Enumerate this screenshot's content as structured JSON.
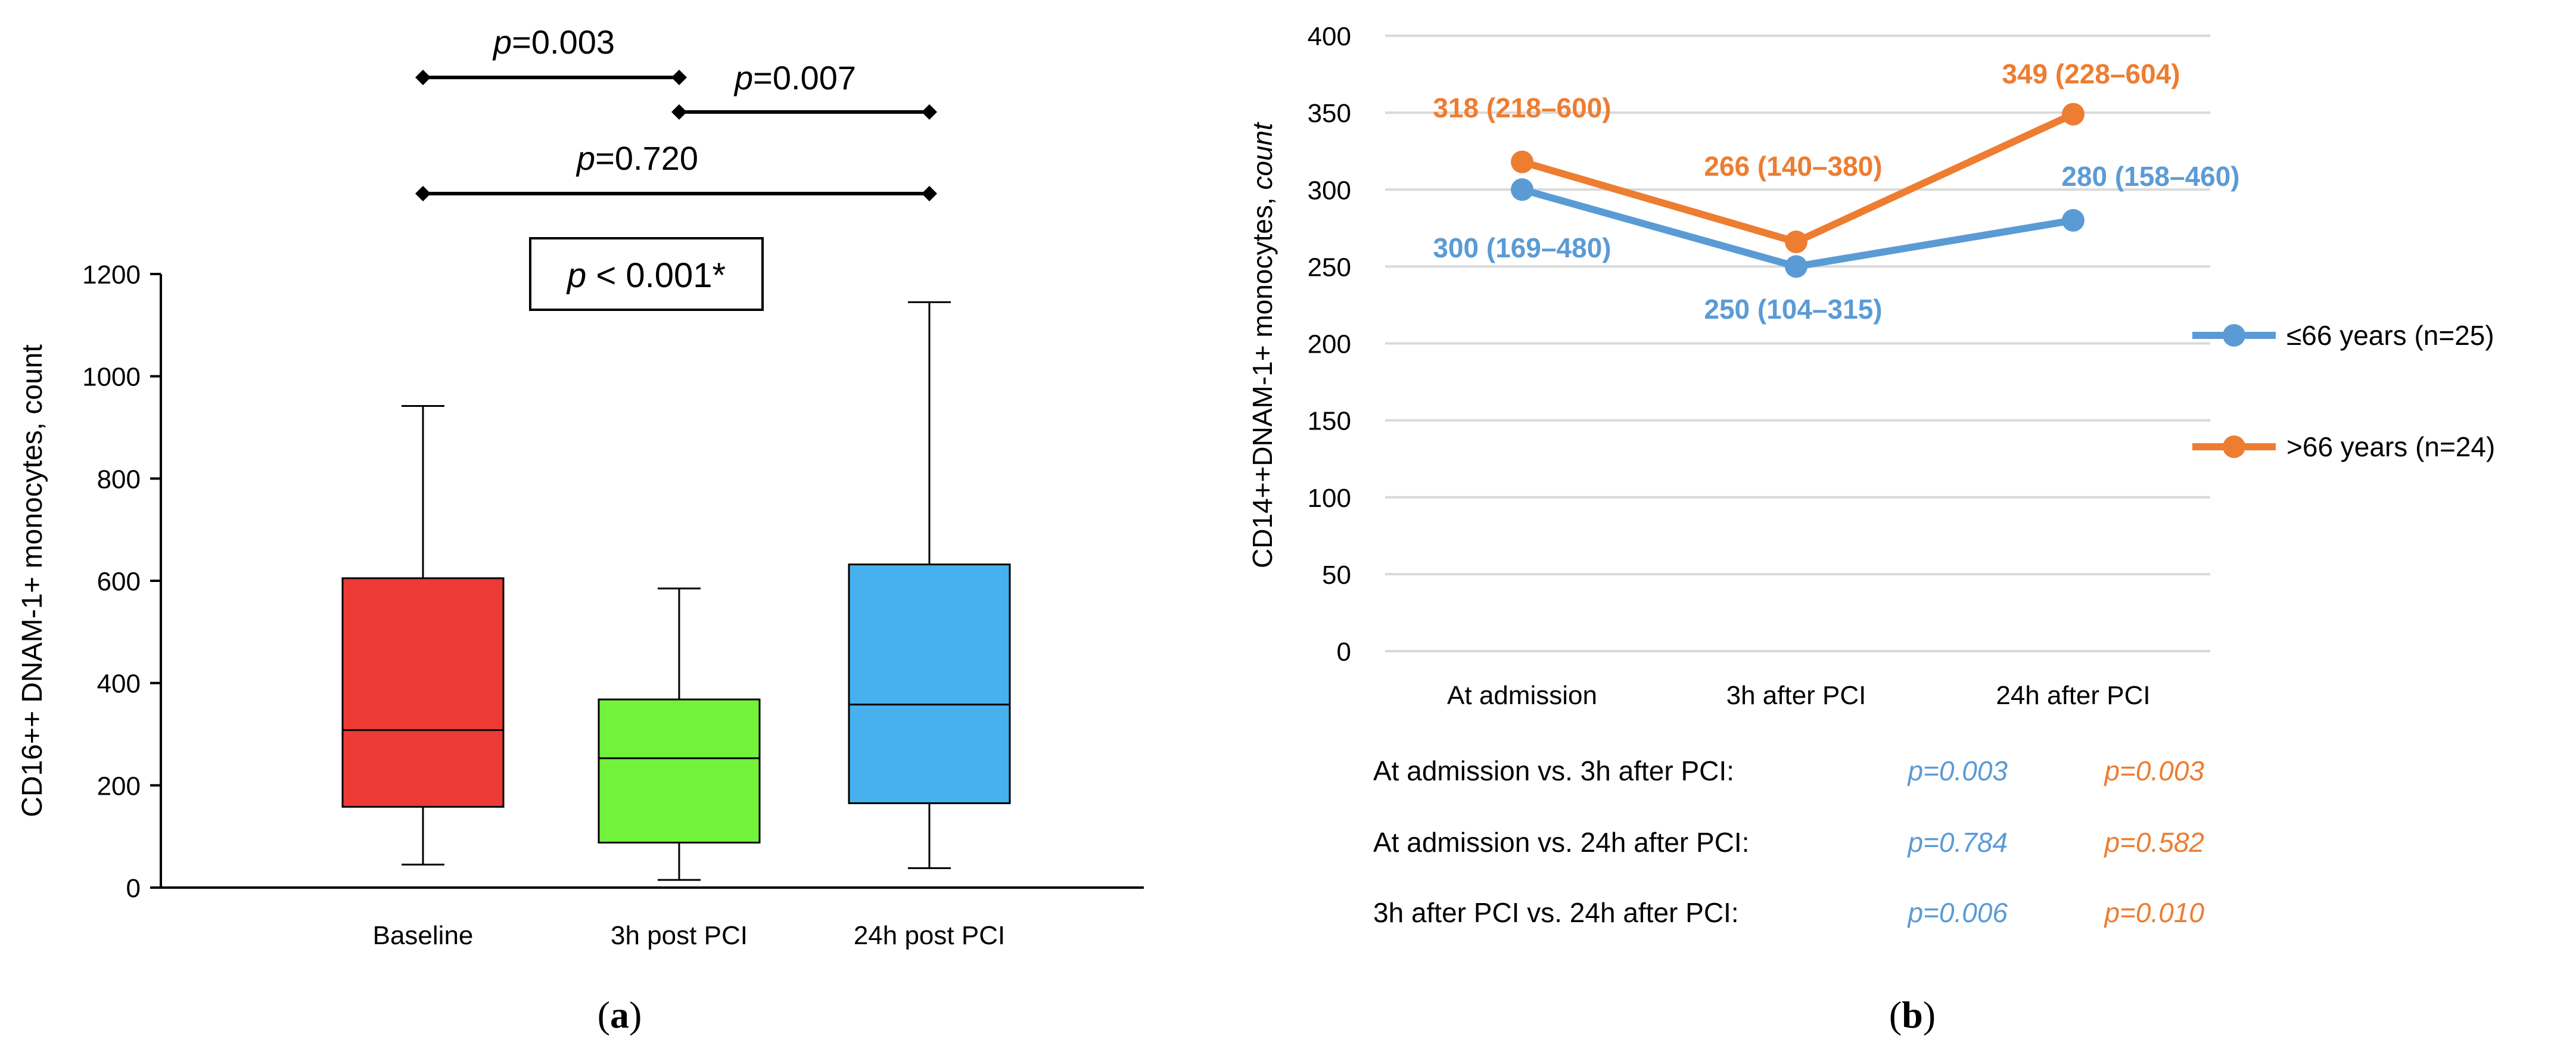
{
  "chart_data": [
    {
      "type": "box",
      "panel_label": "a",
      "ylabel": "CD16++ DNAM-1+ monocytes, count",
      "ylim": [
        0,
        1200
      ],
      "yticks": [
        0,
        200,
        400,
        600,
        800,
        1000,
        1200
      ],
      "categories": [
        "Baseline",
        "3h post PCI",
        "24h post PCI"
      ],
      "boxes": [
        {
          "name": "Baseline",
          "whisker_low": 45,
          "q1": 158,
          "median": 308,
          "q3": 605,
          "whisker_high": 942,
          "color": "#ee3a35"
        },
        {
          "name": "3h post PCI",
          "whisker_low": 15,
          "q1": 88,
          "median": 253,
          "q3": 368,
          "whisker_high": 585,
          "color": "#73f23c"
        },
        {
          "name": "24h post PCI",
          "whisker_low": 38,
          "q1": 165,
          "median": 358,
          "q3": 632,
          "whisker_high": 1145,
          "color": "#46b1ee"
        }
      ],
      "overall_test": {
        "italic": "p",
        "text": " < 0.001*"
      },
      "comparisons": [
        {
          "from": 0,
          "to": 1,
          "italic": "p",
          "text": "=0.003"
        },
        {
          "from": 1,
          "to": 2,
          "italic": "p",
          "text": "=0.007"
        },
        {
          "from": 0,
          "to": 2,
          "italic": "p",
          "text": "=0.720"
        }
      ]
    },
    {
      "type": "line",
      "panel_label": "b",
      "ylabel": "CD14++DNAM-1+ monocytes, ",
      "ylabel_italic": "count",
      "ylim": [
        0,
        400
      ],
      "yticks": [
        0,
        50,
        100,
        150,
        200,
        250,
        300,
        350,
        400
      ],
      "categories": [
        "At admission",
        "3h after PCI",
        "24h after PCI"
      ],
      "grid": true,
      "legend_position": "right",
      "series": [
        {
          "name": "≤66 years (n=25)",
          "color": "#5b9bd5",
          "values": [
            300,
            250,
            280
          ],
          "labels": [
            "300 (169–480)",
            "250 (104–315)",
            "280 (158–460)"
          ]
        },
        {
          "name": ">66 years (n=24)",
          "color": "#ed7d31",
          "values": [
            318,
            266,
            349
          ],
          "labels": [
            "318 (218–600)",
            "266 (140–380)",
            "349 (228–604)"
          ]
        }
      ],
      "comparisons": [
        {
          "label": "At admission vs. 3h after PCI:",
          "p_young": "p=0.003",
          "p_old": "p=0.003"
        },
        {
          "label": "At admission vs. 24h after PCI:",
          "p_young": "p=0.784",
          "p_old": "p=0.582"
        },
        {
          "label": "3h after PCI vs. 24h after PCI:",
          "p_young": "p=0.006",
          "p_old": "p=0.010"
        }
      ]
    }
  ]
}
